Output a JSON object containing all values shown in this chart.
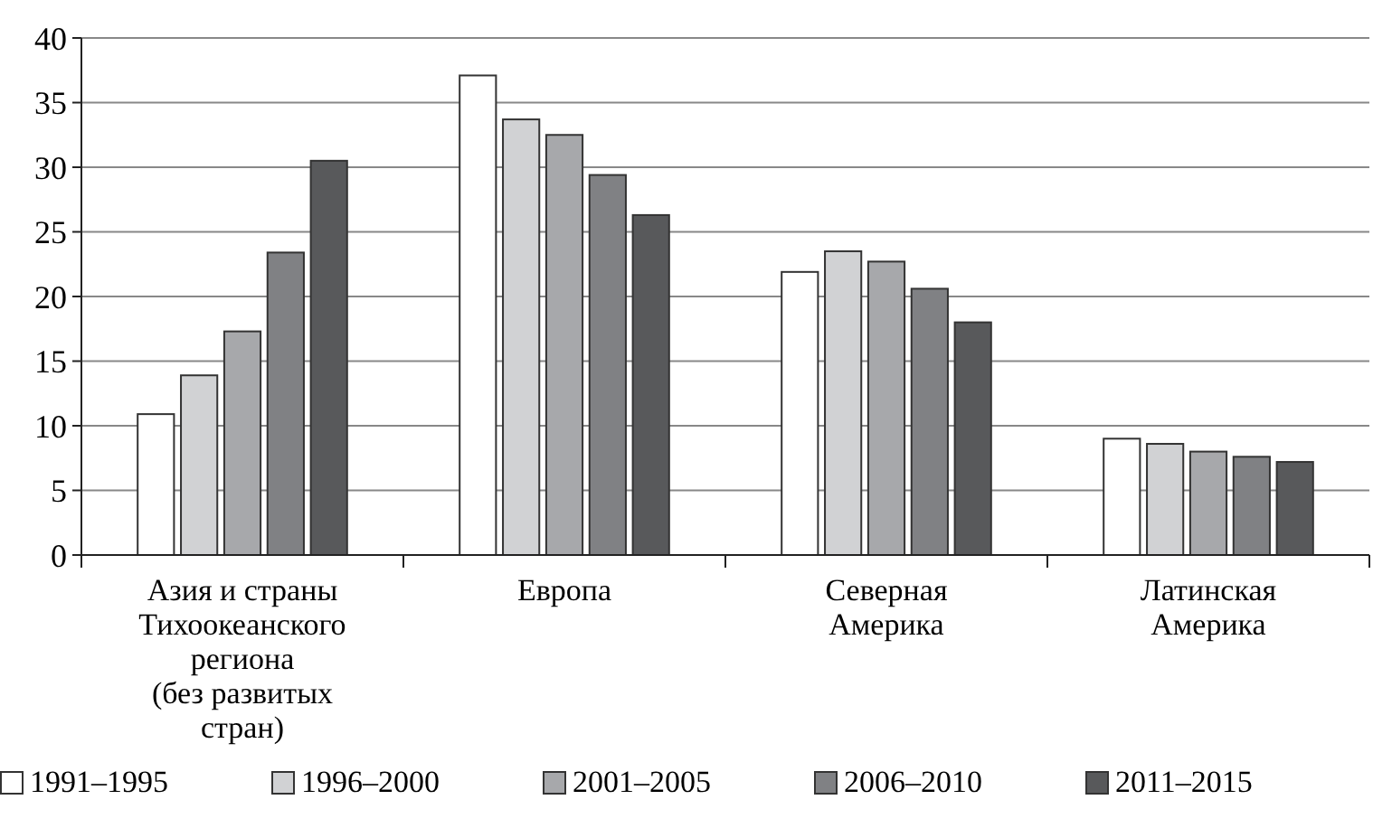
{
  "chart_data": {
    "type": "bar",
    "categories": [
      "Азия и страны\nТихоокеанского\nрегиона\n(без развитых\nстран)",
      "Европа",
      "Северная\nАмерика",
      "Латинская\nАмерика"
    ],
    "series": [
      {
        "name": "1991–1995",
        "color": "#ffffff",
        "values": [
          10.9,
          37.1,
          21.9,
          9.0
        ]
      },
      {
        "name": "1996–2000",
        "color": "#d1d2d4",
        "values": [
          13.9,
          33.7,
          23.5,
          8.6
        ]
      },
      {
        "name": "2001–2005",
        "color": "#a7a8ab",
        "values": [
          17.3,
          32.5,
          22.7,
          8.0
        ]
      },
      {
        "name": "2006–2010",
        "color": "#808184",
        "values": [
          23.4,
          29.4,
          20.6,
          7.6
        ]
      },
      {
        "name": "2011–2015",
        "color": "#58595b",
        "values": [
          30.5,
          26.3,
          18.0,
          7.2
        ]
      }
    ],
    "ylim": [
      0,
      40
    ],
    "yticks": [
      0,
      5,
      10,
      15,
      20,
      25,
      30,
      35,
      40
    ],
    "grid": "y",
    "legend": "bottom"
  }
}
